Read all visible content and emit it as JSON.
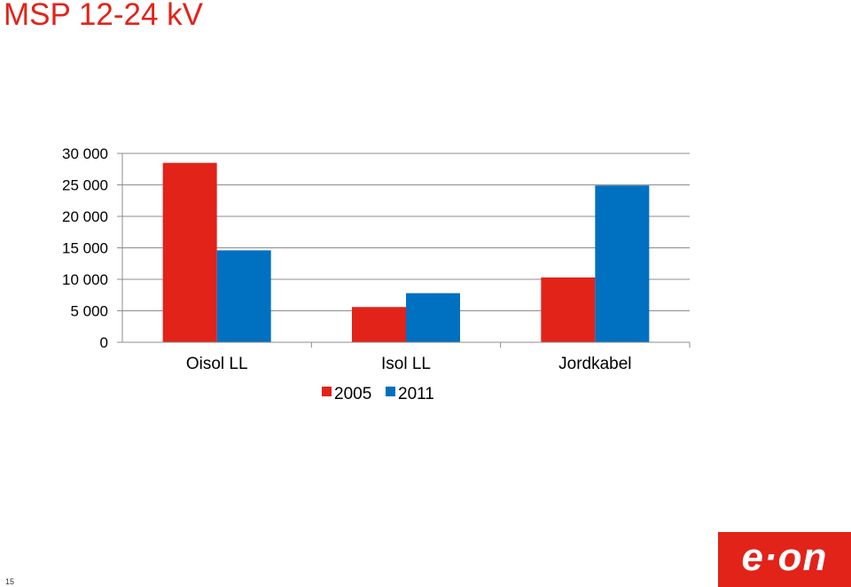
{
  "slide": {
    "title": "MSP 12-24 kV",
    "page_number": "15",
    "logo_text": "e·on"
  },
  "colors": {
    "accent": "#e2231a",
    "series_2005": "#e2231a",
    "series_2011": "#0070c0"
  },
  "chart_data": {
    "type": "bar",
    "title": "",
    "xlabel": "",
    "ylabel": "",
    "categories": [
      "Oisol LL",
      "Isol LL",
      "Jordkabel"
    ],
    "series": [
      {
        "name": "2005",
        "values": [
          28500,
          5600,
          10300
        ]
      },
      {
        "name": "2011",
        "values": [
          14600,
          7800,
          24900
        ]
      }
    ],
    "ylim": [
      0,
      30000
    ],
    "y_ticks": [
      0,
      5000,
      10000,
      15000,
      20000,
      25000,
      30000
    ],
    "y_tick_labels": [
      "0",
      "5 000",
      "10 000",
      "15 000",
      "20 000",
      "25 000",
      "30 000"
    ],
    "grid": true,
    "legend_position": "bottom-center"
  }
}
